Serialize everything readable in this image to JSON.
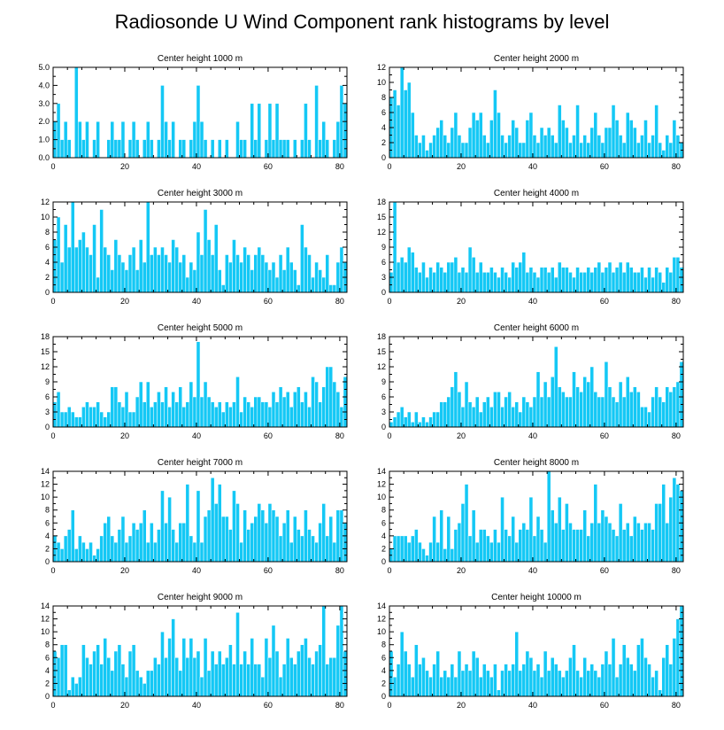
{
  "figure_title": "Radiosonde U Wind Component rank histograms by level",
  "bar_color": "#14c8f5",
  "edge_color": "#ffffff",
  "chart_data": [
    {
      "type": "bar",
      "title": "Center height 1000 m",
      "xlabel": "",
      "ylabel": "",
      "xlim": [
        0,
        82
      ],
      "ylim": [
        0,
        5
      ],
      "yticks": [
        0,
        1,
        2,
        3,
        4,
        5
      ],
      "ytick_labels": [
        "0.0",
        "1.0",
        "2.0",
        "3.0",
        "4.0",
        "5.0"
      ],
      "xticks": [
        0,
        20,
        40,
        60,
        80
      ],
      "values": [
        2,
        3,
        1,
        2,
        1,
        0,
        5,
        2,
        1,
        2,
        0,
        1,
        2,
        0,
        0,
        1,
        2,
        1,
        1,
        2,
        0,
        1,
        2,
        1,
        0,
        1,
        2,
        1,
        0,
        1,
        4,
        2,
        1,
        2,
        0,
        1,
        1,
        0,
        1,
        2,
        4,
        2,
        1,
        0,
        1,
        0,
        1,
        0,
        1,
        0,
        0,
        2,
        1,
        1,
        0,
        3,
        1,
        3,
        0,
        1,
        3,
        1,
        3,
        1,
        1,
        1,
        0,
        1,
        0,
        1,
        3,
        1,
        0,
        4,
        1,
        2,
        1,
        0,
        1,
        2,
        4,
        3
      ]
    },
    {
      "type": "bar",
      "title": "Center height 2000 m",
      "xlabel": "",
      "ylabel": "",
      "xlim": [
        0,
        82
      ],
      "ylim": [
        0,
        12
      ],
      "yticks": [
        0,
        2,
        4,
        6,
        8,
        10,
        12
      ],
      "ytick_labels": [
        "0",
        "2",
        "4",
        "6",
        "8",
        "10",
        "12"
      ],
      "xticks": [
        0,
        20,
        40,
        60,
        80
      ],
      "values": [
        8,
        9,
        7,
        12,
        9,
        10,
        6,
        3,
        2,
        3,
        1,
        2,
        3,
        4,
        5,
        3,
        2,
        4,
        6,
        3,
        2,
        2,
        4,
        6,
        5,
        6,
        3,
        2,
        5,
        9,
        6,
        3,
        2,
        3,
        5,
        4,
        2,
        2,
        5,
        6,
        3,
        2,
        4,
        3,
        4,
        3,
        2,
        7,
        5,
        4,
        2,
        3,
        7,
        2,
        3,
        2,
        4,
        6,
        3,
        2,
        4,
        4,
        7,
        5,
        3,
        2,
        6,
        5,
        4,
        2,
        3,
        5,
        2,
        3,
        7,
        2,
        1,
        3,
        2,
        5,
        3,
        2
      ]
    },
    {
      "type": "bar",
      "title": "Center height 3000 m",
      "xlabel": "",
      "ylabel": "",
      "xlim": [
        0,
        82
      ],
      "ylim": [
        0,
        12
      ],
      "yticks": [
        0,
        2,
        4,
        6,
        8,
        10,
        12
      ],
      "ytick_labels": [
        "0",
        "2",
        "4",
        "6",
        "8",
        "10",
        "12"
      ],
      "xticks": [
        0,
        20,
        40,
        60,
        80
      ],
      "values": [
        7,
        10,
        4,
        9,
        6,
        12,
        6,
        7,
        8,
        6,
        5,
        9,
        2,
        11,
        6,
        5,
        3,
        7,
        5,
        4,
        3,
        5,
        6,
        3,
        7,
        4,
        12,
        5,
        6,
        5,
        6,
        5,
        4,
        7,
        6,
        4,
        5,
        2,
        4,
        3,
        8,
        5,
        11,
        7,
        5,
        9,
        3,
        1,
        5,
        4,
        7,
        5,
        4,
        6,
        5,
        3,
        5,
        6,
        5,
        4,
        3,
        4,
        2,
        5,
        3,
        6,
        4,
        3,
        1,
        9,
        6,
        5,
        2,
        4,
        3,
        2,
        5,
        1,
        1,
        4,
        6,
        4
      ]
    },
    {
      "type": "bar",
      "title": "Center height 4000 m",
      "xlabel": "",
      "ylabel": "",
      "xlim": [
        0,
        82
      ],
      "ylim": [
        0,
        18
      ],
      "yticks": [
        0,
        3,
        6,
        9,
        12,
        15,
        18
      ],
      "ytick_labels": [
        "0",
        "3",
        "6",
        "9",
        "12",
        "15",
        "18"
      ],
      "xticks": [
        0,
        20,
        40,
        60,
        80
      ],
      "values": [
        4,
        18,
        6,
        7,
        6,
        9,
        8,
        5,
        4,
        6,
        3,
        5,
        4,
        6,
        5,
        4,
        6,
        6,
        7,
        4,
        5,
        4,
        9,
        7,
        4,
        6,
        4,
        4,
        5,
        4,
        3,
        5,
        4,
        3,
        6,
        5,
        6,
        8,
        4,
        5,
        4,
        3,
        5,
        5,
        4,
        5,
        3,
        6,
        5,
        5,
        4,
        3,
        5,
        4,
        4,
        5,
        4,
        5,
        6,
        4,
        5,
        6,
        4,
        5,
        6,
        4,
        6,
        5,
        4,
        4,
        5,
        3,
        5,
        3,
        5,
        4,
        2,
        5,
        4,
        7,
        7,
        5
      ]
    },
    {
      "type": "bar",
      "title": "Center height 5000 m",
      "xlabel": "",
      "ylabel": "",
      "xlim": [
        0,
        82
      ],
      "ylim": [
        0,
        18
      ],
      "yticks": [
        0,
        3,
        6,
        9,
        12,
        15,
        18
      ],
      "ytick_labels": [
        "0",
        "3",
        "6",
        "9",
        "12",
        "15",
        "18"
      ],
      "xticks": [
        0,
        20,
        40,
        60,
        80
      ],
      "values": [
        5,
        7,
        3,
        3,
        4,
        3,
        2,
        2,
        4,
        5,
        4,
        4,
        5,
        3,
        2,
        3,
        8,
        8,
        5,
        4,
        7,
        3,
        3,
        6,
        9,
        5,
        9,
        4,
        5,
        7,
        5,
        8,
        4,
        7,
        5,
        8,
        4,
        5,
        9,
        6,
        17,
        6,
        9,
        6,
        5,
        4,
        5,
        3,
        5,
        4,
        5,
        10,
        3,
        6,
        5,
        4,
        6,
        6,
        5,
        5,
        4,
        7,
        5,
        8,
        6,
        7,
        4,
        7,
        8,
        5,
        7,
        4,
        10,
        9,
        5,
        8,
        12,
        12,
        9,
        7,
        4,
        10
      ]
    },
    {
      "type": "bar",
      "title": "Center height 6000 m",
      "xlabel": "",
      "ylabel": "",
      "xlim": [
        0,
        82
      ],
      "ylim": [
        0,
        18
      ],
      "yticks": [
        0,
        3,
        6,
        9,
        12,
        15,
        18
      ],
      "ytick_labels": [
        "0",
        "3",
        "6",
        "9",
        "12",
        "15",
        "18"
      ],
      "xticks": [
        0,
        20,
        40,
        60,
        80
      ],
      "values": [
        1,
        2,
        3,
        4,
        2,
        3,
        1,
        3,
        1,
        2,
        1,
        2,
        3,
        3,
        5,
        5,
        6,
        8,
        11,
        7,
        4,
        9,
        5,
        4,
        6,
        3,
        5,
        6,
        4,
        7,
        7,
        4,
        6,
        7,
        4,
        5,
        3,
        6,
        5,
        4,
        6,
        11,
        6,
        9,
        6,
        10,
        16,
        8,
        7,
        6,
        6,
        11,
        8,
        7,
        10,
        9,
        12,
        7,
        6,
        6,
        13,
        8,
        6,
        5,
        9,
        6,
        10,
        7,
        8,
        7,
        4,
        4,
        3,
        6,
        8,
        6,
        5,
        8,
        7,
        8,
        9,
        13
      ]
    },
    {
      "type": "bar",
      "title": "Center height 7000 m",
      "xlabel": "",
      "ylabel": "",
      "xlim": [
        0,
        82
      ],
      "ylim": [
        0,
        14
      ],
      "yticks": [
        0,
        2,
        4,
        6,
        8,
        10,
        12,
        14
      ],
      "ytick_labels": [
        "0",
        "2",
        "4",
        "6",
        "8",
        "10",
        "12",
        "14"
      ],
      "xticks": [
        0,
        20,
        40,
        60,
        80
      ],
      "values": [
        4,
        3,
        2,
        4,
        5,
        8,
        2,
        4,
        3,
        2,
        3,
        1,
        2,
        4,
        6,
        7,
        4,
        3,
        5,
        7,
        3,
        4,
        6,
        5,
        6,
        8,
        3,
        6,
        3,
        5,
        11,
        6,
        10,
        5,
        3,
        6,
        6,
        12,
        4,
        3,
        11,
        3,
        7,
        8,
        13,
        9,
        12,
        7,
        7,
        5,
        11,
        9,
        3,
        8,
        5,
        6,
        7,
        9,
        8,
        6,
        9,
        8,
        7,
        4,
        6,
        8,
        3,
        7,
        5,
        4,
        8,
        5,
        4,
        3,
        6,
        9,
        4,
        7,
        3,
        8,
        8,
        6
      ]
    },
    {
      "type": "bar",
      "title": "Center height 8000 m",
      "xlabel": "",
      "ylabel": "",
      "xlim": [
        0,
        82
      ],
      "ylim": [
        0,
        14
      ],
      "yticks": [
        0,
        2,
        4,
        6,
        8,
        10,
        12,
        14
      ],
      "ytick_labels": [
        "0",
        "2",
        "4",
        "6",
        "8",
        "10",
        "12",
        "14"
      ],
      "xticks": [
        0,
        20,
        40,
        60,
        80
      ],
      "values": [
        2,
        4,
        4,
        4,
        4,
        3,
        4,
        5,
        3,
        2,
        1,
        3,
        7,
        3,
        8,
        2,
        7,
        2,
        5,
        6,
        9,
        12,
        4,
        8,
        3,
        5,
        5,
        4,
        3,
        5,
        3,
        10,
        5,
        4,
        7,
        3,
        5,
        6,
        5,
        10,
        4,
        7,
        5,
        3,
        14,
        8,
        6,
        10,
        5,
        9,
        6,
        5,
        5,
        5,
        8,
        4,
        6,
        12,
        6,
        8,
        7,
        6,
        5,
        4,
        9,
        5,
        6,
        4,
        7,
        6,
        5,
        6,
        6,
        5,
        9,
        9,
        12,
        6,
        10,
        13,
        12,
        11
      ]
    },
    {
      "type": "bar",
      "title": "Center height 9000 m",
      "xlabel": "",
      "ylabel": "",
      "xlim": [
        0,
        82
      ],
      "ylim": [
        0,
        14
      ],
      "yticks": [
        0,
        2,
        4,
        6,
        8,
        10,
        12,
        14
      ],
      "ytick_labels": [
        "0",
        "2",
        "4",
        "6",
        "8",
        "10",
        "12",
        "14"
      ],
      "xticks": [
        0,
        20,
        40,
        60,
        80
      ],
      "values": [
        7,
        6,
        8,
        8,
        1,
        3,
        2,
        3,
        8,
        6,
        5,
        7,
        8,
        5,
        9,
        6,
        4,
        7,
        8,
        5,
        3,
        7,
        8,
        4,
        3,
        2,
        4,
        4,
        6,
        5,
        10,
        6,
        9,
        12,
        6,
        4,
        9,
        6,
        9,
        6,
        7,
        3,
        9,
        4,
        7,
        5,
        7,
        5,
        6,
        8,
        5,
        13,
        5,
        7,
        5,
        9,
        5,
        5,
        3,
        9,
        6,
        11,
        7,
        3,
        5,
        9,
        6,
        5,
        7,
        8,
        9,
        6,
        5,
        7,
        8,
        14,
        5,
        6,
        6,
        11,
        14,
        7
      ]
    },
    {
      "type": "bar",
      "title": "Center height 10000 m",
      "xlabel": "",
      "ylabel": "",
      "xlim": [
        0,
        82
      ],
      "ylim": [
        0,
        14
      ],
      "yticks": [
        0,
        2,
        4,
        6,
        8,
        10,
        12,
        14
      ],
      "ytick_labels": [
        "0",
        "2",
        "4",
        "6",
        "8",
        "10",
        "12",
        "14"
      ],
      "xticks": [
        0,
        20,
        40,
        60,
        80
      ],
      "values": [
        7,
        3,
        5,
        10,
        7,
        5,
        3,
        8,
        5,
        6,
        4,
        3,
        5,
        7,
        3,
        4,
        3,
        5,
        3,
        7,
        4,
        5,
        4,
        7,
        6,
        3,
        5,
        4,
        3,
        5,
        1,
        4,
        5,
        4,
        5,
        10,
        4,
        5,
        7,
        6,
        4,
        5,
        3,
        7,
        4,
        6,
        5,
        4,
        3,
        4,
        6,
        8,
        4,
        3,
        6,
        4,
        5,
        4,
        3,
        5,
        7,
        5,
        9,
        3,
        5,
        8,
        6,
        5,
        4,
        8,
        9,
        6,
        5,
        3,
        4,
        1,
        6,
        8,
        5,
        9,
        12,
        14
      ]
    }
  ]
}
